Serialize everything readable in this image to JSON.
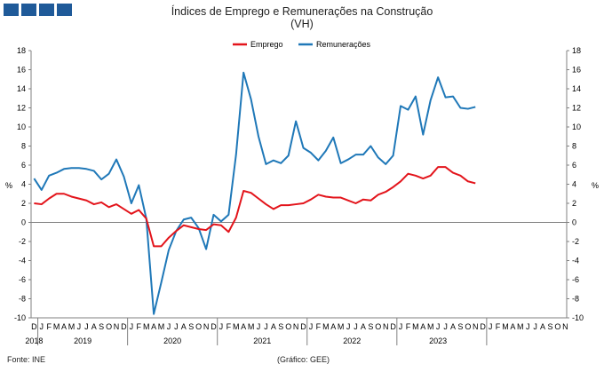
{
  "header": {
    "title": "Índices de Emprego e Remunerações na Construção",
    "subtitle": "(VH)",
    "logo": "ine-logo-blocks"
  },
  "footer": {
    "source": "Fonte: INE",
    "credit": "(Gráfico: GEE)"
  },
  "colors": {
    "emprego": "#e3141b",
    "remuneracoes": "#1f78b8",
    "axis": "#808080"
  },
  "chart_data": {
    "type": "line",
    "title": "Índices de Emprego e Remunerações na Construção",
    "subtitle": "(VH)",
    "ylabel": "%",
    "ylabel_right": "%",
    "ylim": [
      -10,
      18
    ],
    "yticks": [
      -10,
      -8,
      -6,
      -4,
      -2,
      0,
      2,
      4,
      6,
      8,
      10,
      12,
      14,
      16,
      18
    ],
    "grid": false,
    "legend_position": "top-center",
    "x_month_labels": [
      "D",
      "J",
      "F",
      "M",
      "A",
      "M",
      "J",
      "J",
      "A",
      "S",
      "O",
      "N",
      "D",
      "J",
      "F",
      "M",
      "A",
      "M",
      "J",
      "J",
      "A",
      "S",
      "O",
      "N",
      "D",
      "J",
      "F",
      "M",
      "A",
      "M",
      "J",
      "J",
      "A",
      "S",
      "O",
      "N",
      "D",
      "J",
      "F",
      "M",
      "A",
      "M",
      "J",
      "J",
      "A",
      "S",
      "O",
      "N",
      "D",
      "J",
      "F",
      "M",
      "A",
      "M",
      "J",
      "J",
      "A",
      "S",
      "O",
      "N",
      "D",
      "J",
      "F",
      "M",
      "A",
      "M",
      "J",
      "J",
      "A",
      "S",
      "O",
      "N"
    ],
    "x_year_labels": [
      {
        "label": "2018",
        "month_index": 0
      },
      {
        "label": "2019",
        "month_index": 6.5
      },
      {
        "label": "2020",
        "month_index": 18.5
      },
      {
        "label": "2021",
        "month_index": 30.5
      },
      {
        "label": "2022",
        "month_index": 42.5
      },
      {
        "label": "2023",
        "month_index": 54
      }
    ],
    "year_separators": [
      0.5,
      12.5,
      24.5,
      36.5,
      48.5,
      60.5
    ],
    "series": [
      {
        "name": "Emprego",
        "values": [
          2.0,
          1.9,
          2.5,
          3.0,
          3.0,
          2.7,
          2.5,
          2.3,
          1.9,
          2.1,
          1.6,
          1.9,
          1.4,
          0.9,
          1.3,
          0.4,
          -2.5,
          -2.5,
          -1.6,
          -0.9,
          -0.3,
          -0.5,
          -0.7,
          -0.8,
          -0.2,
          -0.3,
          -1.0,
          0.5,
          3.3,
          3.1,
          2.5,
          1.9,
          1.4,
          1.8,
          1.8,
          1.9,
          2.0,
          2.4,
          2.9,
          2.7,
          2.6,
          2.6,
          2.3,
          2.0,
          2.4,
          2.3,
          2.9,
          3.2,
          3.7,
          4.3,
          5.1,
          4.9,
          4.6,
          4.9,
          5.8,
          5.8,
          5.2,
          4.9,
          4.3,
          4.1
        ]
      },
      {
        "name": "Remunerações",
        "values": [
          4.6,
          3.4,
          4.9,
          5.2,
          5.6,
          5.7,
          5.7,
          5.6,
          5.4,
          4.5,
          5.1,
          6.6,
          4.8,
          2.0,
          3.9,
          0.4,
          -9.6,
          -6.3,
          -2.9,
          -0.9,
          0.3,
          0.5,
          -0.6,
          -2.8,
          0.8,
          0.1,
          0.8,
          7.1,
          15.7,
          12.9,
          9.0,
          6.1,
          6.5,
          6.2,
          7.0,
          10.6,
          7.8,
          7.3,
          6.5,
          7.5,
          8.9,
          6.2,
          6.6,
          7.1,
          7.1,
          8.0,
          6.8,
          6.1,
          7.0,
          12.2,
          11.8,
          13.2,
          9.2,
          12.8,
          15.2,
          13.1,
          13.2,
          12.0,
          11.9,
          12.1
        ]
      }
    ]
  }
}
